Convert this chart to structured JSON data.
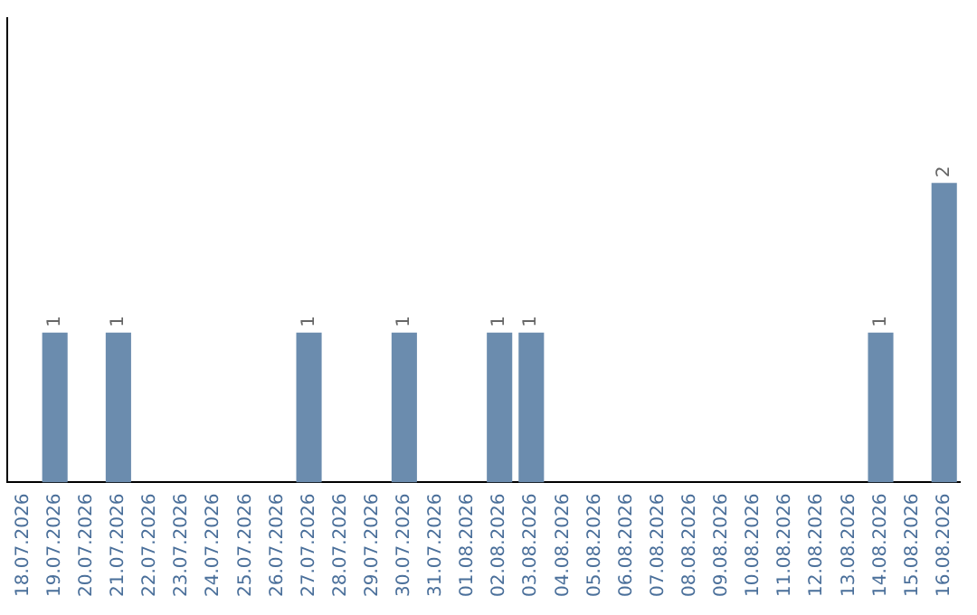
{
  "chart_data": {
    "type": "bar",
    "categories": [
      "18.07.2026",
      "19.07.2026",
      "20.07.2026",
      "21.07.2026",
      "22.07.2026",
      "23.07.2026",
      "24.07.2026",
      "25.07.2026",
      "26.07.2026",
      "27.07.2026",
      "28.07.2026",
      "29.07.2026",
      "30.07.2026",
      "31.07.2026",
      "01.08.2026",
      "02.08.2026",
      "03.08.2026",
      "04.08.2026",
      "05.08.2026",
      "06.08.2026",
      "07.08.2026",
      "08.08.2026",
      "09.08.2026",
      "10.08.2026",
      "11.08.2026",
      "12.08.2026",
      "13.08.2026",
      "14.08.2026",
      "15.08.2026",
      "16.08.2026"
    ],
    "values": [
      0,
      1,
      0,
      1,
      0,
      0,
      0,
      0,
      0,
      1,
      0,
      0,
      1,
      0,
      0,
      1,
      1,
      0,
      0,
      0,
      0,
      0,
      0,
      0,
      0,
      0,
      0,
      1,
      0,
      2
    ],
    "value_labels": [
      null,
      "1",
      null,
      "1",
      null,
      null,
      null,
      null,
      null,
      "1",
      null,
      null,
      "1",
      null,
      null,
      "1",
      "1",
      null,
      null,
      null,
      null,
      null,
      null,
      null,
      null,
      null,
      null,
      "1",
      null,
      "2"
    ],
    "color": "#6b8cae",
    "ylim": [
      0,
      3.1
    ],
    "tick_labels": "x",
    "grid": false,
    "legend": false
  }
}
